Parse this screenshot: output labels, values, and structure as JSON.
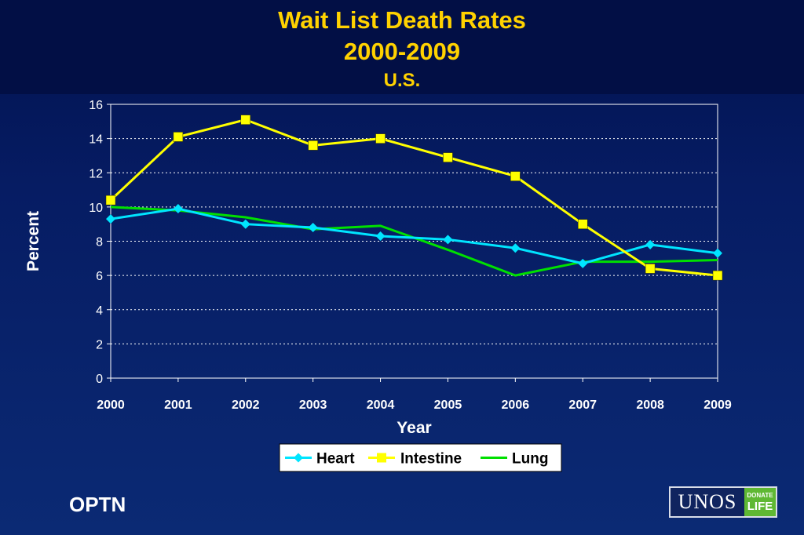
{
  "slide": {
    "title_line1": "Wait List Death Rates",
    "title_line2": "2000-2009",
    "title_line3": "U.S.",
    "footer_left": "OPTN",
    "logo_text": "UNOS",
    "logo_badge_line1": "DONATE",
    "logo_badge_line2": "LIFE"
  },
  "chart_data": {
    "type": "line",
    "title": "Wait List Death Rates 2000-2009 U.S.",
    "xlabel": "Year",
    "ylabel": "Percent",
    "x": [
      "2000",
      "2001",
      "2002",
      "2003",
      "2004",
      "2005",
      "2006",
      "2007",
      "2008",
      "2009"
    ],
    "ylim": [
      0,
      16
    ],
    "yticks": [
      0,
      2,
      4,
      6,
      8,
      10,
      12,
      14,
      16
    ],
    "grid": "horizontal dotted",
    "legend_position": "bottom",
    "series": [
      {
        "name": "Heart",
        "color": "#00e5ff",
        "marker": "diamond",
        "values": [
          9.3,
          9.9,
          9.0,
          8.8,
          8.3,
          8.1,
          7.6,
          6.7,
          7.8,
          7.3
        ]
      },
      {
        "name": "Intestine",
        "color": "#ffff00",
        "marker": "square",
        "values": [
          10.4,
          14.1,
          15.1,
          13.6,
          14.0,
          12.9,
          11.8,
          9.0,
          6.4,
          6.0
        ]
      },
      {
        "name": "Lung",
        "color": "#00e000",
        "marker": "none",
        "values": [
          10.0,
          9.8,
          9.4,
          8.7,
          8.9,
          7.5,
          6.0,
          6.8,
          6.8,
          6.9
        ]
      }
    ]
  }
}
